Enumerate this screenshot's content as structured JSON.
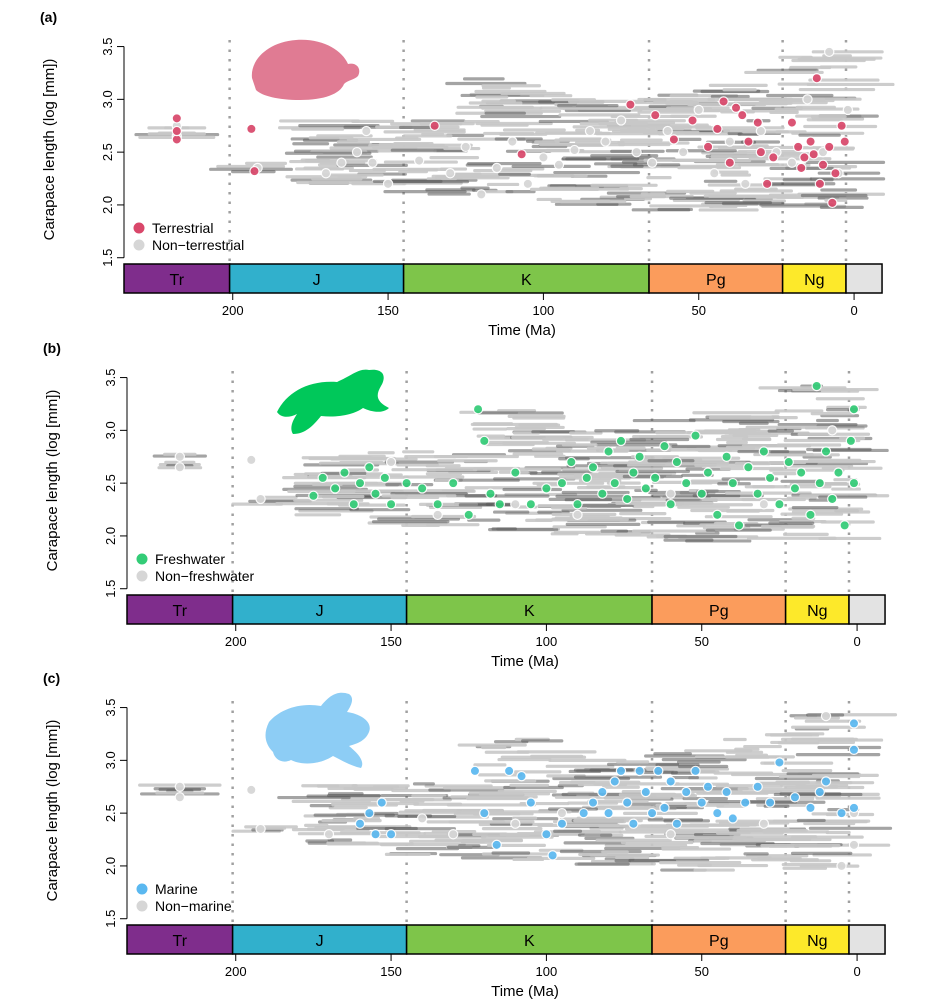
{
  "chart_data": [
    {
      "panel_label": "(a)",
      "type": "scatter",
      "ylabel": "Carapace length (log [mm])",
      "xlabel": "Time (Ma)",
      "xlim": [
        235,
        -18
      ],
      "ylim": [
        1.45,
        3.6
      ],
      "y_ticks": [
        "1.5",
        "2.0",
        "2.5",
        "3.0",
        "3.5"
      ],
      "x_ticks": [
        "200",
        "150",
        "100",
        "50",
        "0"
      ],
      "highlight_color": "#d9476a",
      "silhouette": "tortoise-silhouette",
      "silhouette_color": "#e07b93",
      "legend": [
        {
          "label": "Terrestrial",
          "color": "#d9476a"
        },
        {
          "label": "Non−terrestrial",
          "color": "#d6d6d6"
        }
      ],
      "series": [
        {
          "name": "Terrestrial",
          "points": [
            [
              218,
              2.62
            ],
            [
              218,
              2.7
            ],
            [
              218,
              2.82
            ],
            [
              194,
              2.72
            ],
            [
              193,
              2.32
            ],
            [
              135,
              2.75
            ],
            [
              107,
              2.48
            ],
            [
              72,
              2.95
            ],
            [
              64,
              2.85
            ],
            [
              58,
              2.62
            ],
            [
              52,
              2.8
            ],
            [
              47,
              2.55
            ],
            [
              44,
              2.72
            ],
            [
              42,
              2.98
            ],
            [
              40,
              2.4
            ],
            [
              38,
              2.92
            ],
            [
              36,
              2.85
            ],
            [
              34,
              2.6
            ],
            [
              31,
              2.78
            ],
            [
              30,
              2.5
            ],
            [
              28,
              2.2
            ],
            [
              26,
              2.45
            ],
            [
              20,
              2.78
            ],
            [
              18,
              2.55
            ],
            [
              17,
              2.35
            ],
            [
              16,
              2.45
            ],
            [
              14,
              2.6
            ],
            [
              13,
              2.48
            ],
            [
              12,
              3.2
            ],
            [
              11,
              2.2
            ],
            [
              10,
              2.38
            ],
            [
              8,
              2.55
            ],
            [
              7,
              2.02
            ],
            [
              6,
              2.3
            ],
            [
              4,
              2.75
            ],
            [
              3,
              2.6
            ]
          ]
        },
        {
          "name": "Non-terrestrial",
          "points": [
            [
              218,
              2.65
            ],
            [
              218,
              2.75
            ],
            [
              192,
              2.35
            ],
            [
              170,
              2.3
            ],
            [
              165,
              2.4
            ],
            [
              160,
              2.5
            ],
            [
              157,
              2.7
            ],
            [
              155,
              2.4
            ],
            [
              150,
              2.2
            ],
            [
              140,
              2.42
            ],
            [
              130,
              2.3
            ],
            [
              125,
              2.55
            ],
            [
              120,
              2.1
            ],
            [
              115,
              2.35
            ],
            [
              110,
              2.6
            ],
            [
              105,
              2.2
            ],
            [
              100,
              2.45
            ],
            [
              95,
              2.38
            ],
            [
              90,
              2.52
            ],
            [
              85,
              2.7
            ],
            [
              80,
              2.6
            ],
            [
              75,
              2.8
            ],
            [
              70,
              2.5
            ],
            [
              65,
              2.4
            ],
            [
              60,
              2.7
            ],
            [
              55,
              2.5
            ],
            [
              50,
              2.9
            ],
            [
              45,
              2.3
            ],
            [
              40,
              2.6
            ],
            [
              35,
              2.2
            ],
            [
              30,
              2.7
            ],
            [
              25,
              2.5
            ],
            [
              20,
              2.4
            ],
            [
              15,
              3.0
            ],
            [
              10,
              2.5
            ],
            [
              8,
              3.45
            ],
            [
              5,
              2.3
            ],
            [
              2,
              2.9
            ]
          ]
        }
      ],
      "periods": [
        {
          "label": "Tr",
          "start": 235,
          "end": 201,
          "color": "#7f2d8c"
        },
        {
          "label": "J",
          "start": 201,
          "end": 145,
          "color": "#31b0cc"
        },
        {
          "label": "K",
          "start": 145,
          "end": 66,
          "color": "#7ec54a"
        },
        {
          "label": "Pg",
          "start": 66,
          "end": 23,
          "color": "#fb9c5c"
        },
        {
          "label": "Ng",
          "start": 23,
          "end": 2.6,
          "color": "#fde92a"
        },
        {
          "label": "",
          "start": 2.6,
          "end": -9,
          "color": "#e3e3e3"
        }
      ]
    },
    {
      "panel_label": "(b)",
      "type": "scatter",
      "ylabel": "Carapace length (log [mm])",
      "xlabel": "Time (Ma)",
      "xlim": [
        235,
        -18
      ],
      "ylim": [
        1.45,
        3.6
      ],
      "y_ticks": [
        "1.5",
        "2.0",
        "2.5",
        "3.0",
        "3.5"
      ],
      "x_ticks": [
        "200",
        "150",
        "100",
        "50",
        "0"
      ],
      "highlight_color": "#33cc77",
      "silhouette": "freshwater-turtle-silhouette",
      "silhouette_color": "#00c85a",
      "legend": [
        {
          "label": "Freshwater",
          "color": "#33cc77"
        },
        {
          "label": "Non−freshwater",
          "color": "#d6d6d6"
        }
      ],
      "series": [
        {
          "name": "Freshwater",
          "points": [
            [
              175,
              2.38
            ],
            [
              172,
              2.55
            ],
            [
              168,
              2.45
            ],
            [
              165,
              2.6
            ],
            [
              162,
              2.3
            ],
            [
              160,
              2.5
            ],
            [
              157,
              2.65
            ],
            [
              155,
              2.4
            ],
            [
              152,
              2.55
            ],
            [
              150,
              2.3
            ],
            [
              145,
              2.5
            ],
            [
              140,
              2.45
            ],
            [
              135,
              2.3
            ],
            [
              130,
              2.5
            ],
            [
              125,
              2.2
            ],
            [
              122,
              3.2
            ],
            [
              120,
              2.9
            ],
            [
              118,
              2.4
            ],
            [
              115,
              2.3
            ],
            [
              110,
              2.6
            ],
            [
              105,
              2.3
            ],
            [
              100,
              2.45
            ],
            [
              95,
              2.5
            ],
            [
              92,
              2.7
            ],
            [
              90,
              2.3
            ],
            [
              87,
              2.55
            ],
            [
              85,
              2.65
            ],
            [
              82,
              2.4
            ],
            [
              80,
              2.8
            ],
            [
              78,
              2.5
            ],
            [
              76,
              2.9
            ],
            [
              74,
              2.35
            ],
            [
              72,
              2.6
            ],
            [
              70,
              2.75
            ],
            [
              68,
              2.45
            ],
            [
              65,
              2.55
            ],
            [
              62,
              2.85
            ],
            [
              60,
              2.3
            ],
            [
              58,
              2.7
            ],
            [
              55,
              2.5
            ],
            [
              52,
              2.95
            ],
            [
              50,
              2.4
            ],
            [
              48,
              2.6
            ],
            [
              45,
              2.2
            ],
            [
              42,
              2.75
            ],
            [
              40,
              2.5
            ],
            [
              38,
              2.1
            ],
            [
              35,
              2.65
            ],
            [
              32,
              2.4
            ],
            [
              30,
              2.8
            ],
            [
              28,
              2.55
            ],
            [
              25,
              2.3
            ],
            [
              22,
              2.7
            ],
            [
              20,
              2.45
            ],
            [
              18,
              2.6
            ],
            [
              15,
              2.2
            ],
            [
              13,
              3.42
            ],
            [
              12,
              2.5
            ],
            [
              10,
              2.8
            ],
            [
              8,
              2.35
            ],
            [
              6,
              2.6
            ],
            [
              4,
              2.1
            ],
            [
              2,
              2.9
            ],
            [
              1,
              3.2
            ],
            [
              1,
              2.5
            ]
          ]
        },
        {
          "name": "Non-freshwater",
          "points": [
            [
              218,
              2.65
            ],
            [
              218,
              2.75
            ],
            [
              195,
              2.72
            ],
            [
              192,
              2.35
            ],
            [
              150,
              2.7
            ],
            [
              135,
              2.2
            ],
            [
              110,
              2.3
            ],
            [
              90,
              2.2
            ],
            [
              60,
              2.4
            ],
            [
              30,
              2.3
            ],
            [
              8,
              3.0
            ]
          ]
        }
      ],
      "periods": [
        {
          "label": "Tr",
          "start": 235,
          "end": 201,
          "color": "#7f2d8c"
        },
        {
          "label": "J",
          "start": 201,
          "end": 145,
          "color": "#31b0cc"
        },
        {
          "label": "K",
          "start": 145,
          "end": 66,
          "color": "#7ec54a"
        },
        {
          "label": "Pg",
          "start": 66,
          "end": 23,
          "color": "#fb9c5c"
        },
        {
          "label": "Ng",
          "start": 23,
          "end": 2.6,
          "color": "#fde92a"
        },
        {
          "label": "",
          "start": 2.6,
          "end": -9,
          "color": "#e3e3e3"
        }
      ]
    },
    {
      "panel_label": "(c)",
      "type": "scatter",
      "ylabel": "Carapace length (log [mm])",
      "xlabel": "Time (Ma)",
      "xlim": [
        235,
        -18
      ],
      "ylim": [
        1.45,
        3.6
      ],
      "y_ticks": [
        "1.5",
        "2.0",
        "2.5",
        "3.0",
        "3.5"
      ],
      "x_ticks": [
        "200",
        "150",
        "100",
        "50",
        "0"
      ],
      "highlight_color": "#5ab8f0",
      "silhouette": "sea-turtle-silhouette",
      "silhouette_color": "#8dcdf5",
      "legend": [
        {
          "label": "Marine",
          "color": "#5ab8f0"
        },
        {
          "label": "Non−marine",
          "color": "#d6d6d6"
        }
      ],
      "series": [
        {
          "name": "Marine",
          "points": [
            [
              160,
              2.4
            ],
            [
              157,
              2.5
            ],
            [
              155,
              2.3
            ],
            [
              153,
              2.6
            ],
            [
              150,
              2.3
            ],
            [
              123,
              2.9
            ],
            [
              120,
              2.5
            ],
            [
              116,
              2.2
            ],
            [
              112,
              2.9
            ],
            [
              108,
              2.85
            ],
            [
              105,
              2.6
            ],
            [
              100,
              2.3
            ],
            [
              98,
              2.1
            ],
            [
              95,
              2.4
            ],
            [
              88,
              2.5
            ],
            [
              85,
              2.6
            ],
            [
              82,
              2.7
            ],
            [
              80,
              2.5
            ],
            [
              78,
              2.8
            ],
            [
              76,
              2.9
            ],
            [
              74,
              2.6
            ],
            [
              72,
              2.4
            ],
            [
              70,
              2.9
            ],
            [
              68,
              2.7
            ],
            [
              66,
              2.5
            ],
            [
              64,
              2.9
            ],
            [
              62,
              2.55
            ],
            [
              60,
              2.8
            ],
            [
              58,
              2.4
            ],
            [
              55,
              2.7
            ],
            [
              52,
              2.9
            ],
            [
              50,
              2.6
            ],
            [
              48,
              2.75
            ],
            [
              45,
              2.5
            ],
            [
              42,
              2.7
            ],
            [
              40,
              2.45
            ],
            [
              36,
              2.6
            ],
            [
              32,
              2.75
            ],
            [
              28,
              2.6
            ],
            [
              25,
              2.98
            ],
            [
              20,
              2.65
            ],
            [
              15,
              2.55
            ],
            [
              12,
              2.7
            ],
            [
              10,
              2.8
            ],
            [
              5,
              2.5
            ],
            [
              1,
              3.35
            ],
            [
              1,
              3.1
            ],
            [
              1,
              2.55
            ]
          ]
        },
        {
          "name": "Non-marine",
          "points": [
            [
              218,
              2.65
            ],
            [
              218,
              2.75
            ],
            [
              195,
              2.72
            ],
            [
              192,
              2.35
            ],
            [
              170,
              2.3
            ],
            [
              140,
              2.45
            ],
            [
              130,
              2.3
            ],
            [
              110,
              2.4
            ],
            [
              95,
              2.5
            ],
            [
              60,
              2.3
            ],
            [
              30,
              2.4
            ],
            [
              10,
              3.42
            ],
            [
              5,
              2.0
            ],
            [
              1,
              2.2
            ],
            [
              1,
              2.5
            ]
          ]
        }
      ],
      "periods": [
        {
          "label": "Tr",
          "start": 235,
          "end": 201,
          "color": "#7f2d8c"
        },
        {
          "label": "J",
          "start": 201,
          "end": 145,
          "color": "#31b0cc"
        },
        {
          "label": "K",
          "start": 145,
          "end": 66,
          "color": "#7ec54a"
        },
        {
          "label": "Pg",
          "start": 66,
          "end": 23,
          "color": "#fb9c5c"
        },
        {
          "label": "Ng",
          "start": 23,
          "end": 2.6,
          "color": "#fde92a"
        },
        {
          "label": "",
          "start": 2.6,
          "end": -9,
          "color": "#e3e3e3"
        }
      ]
    }
  ]
}
